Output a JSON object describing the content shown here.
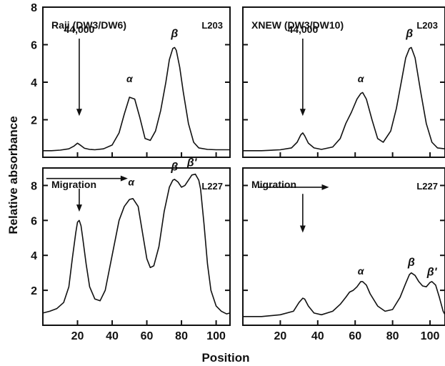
{
  "ylabel": "Relative absorbance",
  "xlabel": "Position",
  "chart_data": [
    {
      "type": "line",
      "panel": "top-left",
      "title": "Raji (DW3/DW6)",
      "code": "L203",
      "xlim": [
        0,
        108
      ],
      "ylim": [
        0,
        8
      ],
      "xticks": [
        20,
        40,
        60,
        80,
        100
      ],
      "yticks": [
        2,
        4,
        6,
        8
      ],
      "xtick_labels": [],
      "ytick_labels": [
        "2",
        "4",
        "6",
        "8"
      ],
      "annotations": [
        {
          "text": "44,000",
          "x": 21,
          "y": 6.4,
          "kind": "marker-arrow",
          "arrow_to": 2.2
        },
        {
          "text": "α",
          "x": 50,
          "y": 4.0
        },
        {
          "text": "β",
          "x": 76,
          "y": 6.4
        }
      ],
      "series": [
        {
          "x": [
            0,
            5,
            10,
            15,
            18,
            20,
            22,
            24,
            27,
            30,
            35,
            40,
            44,
            47,
            50,
            53,
            56,
            59,
            62,
            65,
            68,
            71,
            73,
            75,
            76,
            77,
            79,
            81,
            84,
            87,
            90,
            95,
            100,
            108
          ],
          "y": [
            0.35,
            0.35,
            0.38,
            0.45,
            0.6,
            0.75,
            0.62,
            0.48,
            0.42,
            0.4,
            0.45,
            0.65,
            1.3,
            2.3,
            3.2,
            3.1,
            2.1,
            1.0,
            0.9,
            1.4,
            2.5,
            4.0,
            5.2,
            5.8,
            5.85,
            5.7,
            4.8,
            3.5,
            1.8,
            0.8,
            0.5,
            0.42,
            0.4,
            0.4
          ]
        }
      ]
    },
    {
      "type": "line",
      "panel": "top-right",
      "title": "XNEW (DW3/DW10)",
      "code": "L203",
      "xlim": [
        0,
        108
      ],
      "ylim": [
        0,
        8
      ],
      "xticks": [
        20,
        40,
        60,
        80,
        100
      ],
      "yticks": [
        2,
        4,
        6,
        8
      ],
      "xtick_labels": [],
      "ytick_labels": [],
      "annotations": [
        {
          "text": "44,000",
          "x": 32,
          "y": 6.4,
          "kind": "marker-arrow",
          "arrow_to": 2.2
        },
        {
          "text": "α",
          "x": 63,
          "y": 4.0
        },
        {
          "text": "β",
          "x": 89,
          "y": 6.4
        }
      ],
      "series": [
        {
          "x": [
            0,
            10,
            20,
            26,
            29,
            31,
            32,
            33,
            35,
            38,
            42,
            48,
            52,
            55,
            58,
            61,
            63,
            64,
            66,
            69,
            72,
            75,
            79,
            82,
            85,
            87,
            89,
            90,
            92,
            95,
            98,
            101,
            104,
            108
          ],
          "y": [
            0.35,
            0.35,
            0.4,
            0.5,
            0.8,
            1.2,
            1.3,
            1.15,
            0.75,
            0.5,
            0.42,
            0.55,
            1.0,
            1.8,
            2.4,
            3.1,
            3.4,
            3.45,
            3.1,
            2.0,
            1.0,
            0.8,
            1.4,
            2.6,
            4.2,
            5.3,
            5.8,
            5.85,
            5.3,
            3.5,
            1.8,
            0.8,
            0.5,
            0.45
          ]
        }
      ]
    },
    {
      "type": "line",
      "panel": "bottom-left",
      "title": "Migration",
      "code": "L227",
      "xlim": [
        0,
        108
      ],
      "ylim": [
        0,
        9
      ],
      "xticks": [
        20,
        40,
        60,
        80,
        100
      ],
      "yticks": [
        2,
        4,
        6,
        8
      ],
      "xtick_labels": [
        "20",
        "40",
        "60",
        "80",
        "100"
      ],
      "ytick_labels": [
        "2",
        "4",
        "6",
        "8"
      ],
      "annotations": [
        {
          "text": "α",
          "x": 51,
          "y": 8.0
        },
        {
          "text": "β",
          "x": 76,
          "y": 8.85
        },
        {
          "text": "β'",
          "x": 86,
          "y": 9.1
        },
        {
          "text": "",
          "x": 21,
          "y": 7.9,
          "kind": "marker-arrow",
          "arrow_to": 6.5
        },
        {
          "text": "",
          "x": 2,
          "y": 8.4,
          "kind": "migration-arrow",
          "arrow_to": 49
        }
      ],
      "series": [
        {
          "x": [
            0,
            4,
            8,
            12,
            15,
            17,
            19,
            20,
            21,
            22,
            23,
            25,
            27,
            30,
            33,
            36,
            40,
            44,
            47,
            50,
            52,
            55,
            58,
            60,
            62,
            64,
            67,
            70,
            73,
            75,
            76,
            78,
            80,
            82,
            84,
            86,
            88,
            90,
            91,
            93,
            95,
            97,
            100,
            103,
            106,
            108
          ],
          "y": [
            0.7,
            0.8,
            0.95,
            1.3,
            2.2,
            3.8,
            5.3,
            5.9,
            6.0,
            5.7,
            5.0,
            3.5,
            2.2,
            1.5,
            1.4,
            2.0,
            4.0,
            6.0,
            6.8,
            7.2,
            7.25,
            6.8,
            5.0,
            3.8,
            3.3,
            3.4,
            4.5,
            6.5,
            7.9,
            8.3,
            8.35,
            8.2,
            7.9,
            8.0,
            8.3,
            8.6,
            8.65,
            8.3,
            7.8,
            5.8,
            3.5,
            2.0,
            1.1,
            0.8,
            0.65,
            0.7
          ]
        }
      ]
    },
    {
      "type": "line",
      "panel": "bottom-right",
      "title": "Migration",
      "code": "L227",
      "xlim": [
        0,
        108
      ],
      "ylim": [
        0,
        9
      ],
      "xticks": [
        20,
        40,
        60,
        80,
        100
      ],
      "yticks": [
        2,
        4,
        6,
        8
      ],
      "xtick_labels": [
        "20",
        "40",
        "60",
        "80",
        "100"
      ],
      "ytick_labels": [],
      "annotations": [
        {
          "text": "α",
          "x": 63,
          "y": 2.9
        },
        {
          "text": "β",
          "x": 90,
          "y": 3.4
        },
        {
          "text": "β'",
          "x": 101,
          "y": 2.85
        },
        {
          "text": "",
          "x": 32,
          "y": 7.6,
          "kind": "marker-arrow",
          "arrow_to": 5.3
        },
        {
          "text": "",
          "x": 8,
          "y": 7.9,
          "kind": "migration-arrow",
          "arrow_to": 46
        }
      ],
      "series": [
        {
          "x": [
            0,
            10,
            20,
            27,
            30,
            32,
            33,
            35,
            38,
            42,
            48,
            52,
            55,
            57,
            59,
            61,
            63,
            64,
            66,
            68,
            72,
            76,
            80,
            84,
            87,
            89,
            90,
            92,
            94,
            96,
            98,
            100,
            101,
            103,
            105,
            107,
            108
          ],
          "y": [
            0.5,
            0.5,
            0.6,
            0.8,
            1.3,
            1.55,
            1.5,
            1.1,
            0.7,
            0.6,
            0.8,
            1.2,
            1.6,
            1.9,
            2.0,
            2.2,
            2.5,
            2.5,
            2.3,
            1.8,
            1.1,
            0.8,
            0.9,
            1.6,
            2.4,
            2.9,
            3.0,
            2.85,
            2.5,
            2.25,
            2.2,
            2.45,
            2.5,
            2.3,
            1.6,
            0.8,
            0.6
          ]
        }
      ]
    }
  ]
}
